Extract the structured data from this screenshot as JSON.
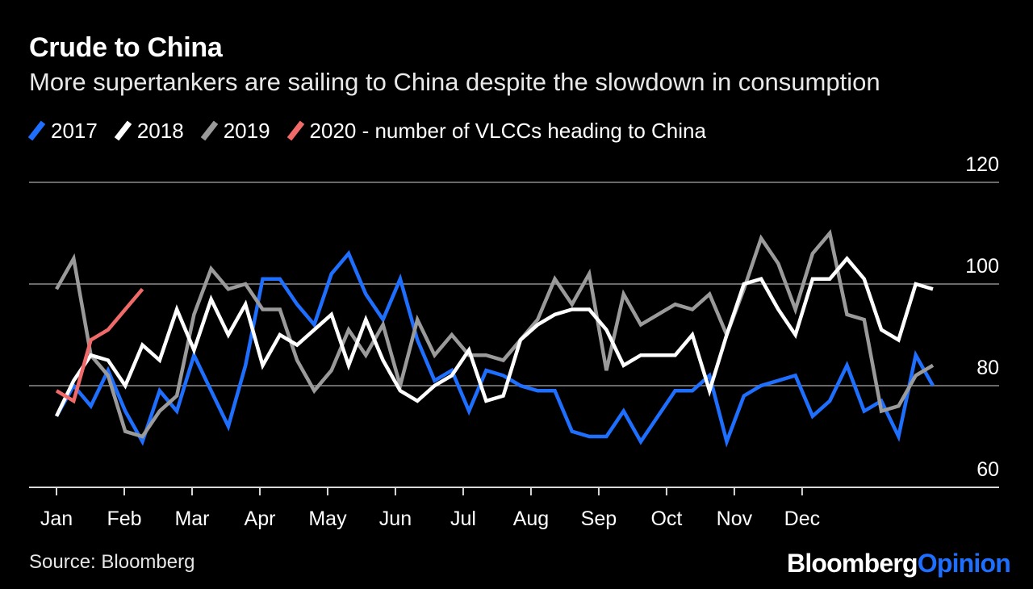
{
  "header": {
    "title": "Crude to China",
    "subtitle": "More supertankers are sailing to China despite the slowdown in consumption"
  },
  "legend": [
    {
      "label": "2017",
      "color": "#1f6fff"
    },
    {
      "label": "2018",
      "color": "#ffffff"
    },
    {
      "label": "2019",
      "color": "#9a9a9a"
    },
    {
      "label": "2020 - number of VLCCs heading to China",
      "color": "#f06a6a"
    }
  ],
  "footer": {
    "source": "Source: Bloomberg",
    "brand_part1": "Bloomberg",
    "brand_part2": "Opinion"
  },
  "chart_data": {
    "type": "line",
    "title": "Crude to China",
    "subtitle": "More supertankers are sailing to China despite the slowdown in consumption",
    "xlabel": "",
    "ylabel": "",
    "ylim": [
      60,
      120
    ],
    "yticks": [
      60,
      80,
      100,
      120
    ],
    "month_labels": [
      "Jan",
      "Feb",
      "Mar",
      "Apr",
      "May",
      "Jun",
      "Jul",
      "Aug",
      "Sep",
      "Oct",
      "Nov",
      "Dec"
    ],
    "x_unit": "week of year",
    "grid": true,
    "axis_position": "right",
    "legend_position": "top-left",
    "series": [
      {
        "name": "2017",
        "color": "#1f6fff",
        "x": [
          1,
          2,
          3,
          4,
          5,
          6,
          7,
          8,
          9,
          10,
          11,
          12,
          13,
          14,
          15,
          16,
          17,
          18,
          19,
          20,
          21,
          22,
          23,
          24,
          25,
          26,
          27,
          28,
          29,
          30,
          31,
          32,
          33,
          34,
          35,
          36,
          37,
          38,
          39,
          40,
          41,
          42,
          43,
          44,
          45,
          46,
          47,
          48,
          49,
          50,
          51,
          52
        ],
        "values": [
          74,
          80,
          76,
          83,
          75,
          69,
          79,
          75,
          86,
          79,
          72,
          84,
          101,
          101,
          96,
          92,
          102,
          106,
          98,
          93,
          101,
          89,
          81,
          83,
          75,
          83,
          82,
          80,
          79,
          79,
          71,
          70,
          70,
          75,
          69,
          74,
          79,
          79,
          82,
          69,
          78,
          80,
          81,
          82,
          74,
          77,
          84,
          75,
          77,
          70,
          86,
          80
        ]
      },
      {
        "name": "2018",
        "color": "#ffffff",
        "x": [
          1,
          2,
          3,
          4,
          5,
          6,
          7,
          8,
          9,
          10,
          11,
          12,
          13,
          14,
          15,
          16,
          17,
          18,
          19,
          20,
          21,
          22,
          23,
          24,
          25,
          26,
          27,
          28,
          29,
          30,
          31,
          32,
          33,
          34,
          35,
          36,
          37,
          38,
          39,
          40,
          41,
          42,
          43,
          44,
          45,
          46,
          47,
          48,
          49,
          50,
          51,
          52
        ],
        "values": [
          74,
          81,
          86,
          85,
          80,
          88,
          85,
          95,
          87,
          97,
          90,
          96,
          84,
          90,
          88,
          91,
          94,
          84,
          93,
          85,
          79,
          77,
          80,
          82,
          87,
          77,
          78,
          89,
          92,
          94,
          95,
          95,
          91,
          84,
          86,
          86,
          86,
          90,
          79,
          90,
          100,
          101,
          95,
          90,
          101,
          101,
          105,
          101,
          91,
          89,
          100,
          99
        ]
      },
      {
        "name": "2019",
        "color": "#9a9a9a",
        "x": [
          1,
          2,
          3,
          4,
          5,
          6,
          7,
          8,
          9,
          10,
          11,
          12,
          13,
          14,
          15,
          16,
          17,
          18,
          19,
          20,
          21,
          22,
          23,
          24,
          25,
          26,
          27,
          28,
          29,
          30,
          31,
          32,
          33,
          34,
          35,
          36,
          37,
          38,
          39,
          40,
          41,
          42,
          43,
          44,
          45,
          46,
          47,
          48,
          49,
          50,
          51,
          52
        ],
        "values": [
          99,
          105,
          86,
          82,
          71,
          70,
          75,
          78,
          94,
          103,
          99,
          100,
          95,
          95,
          85,
          79,
          83,
          91,
          86,
          92,
          80,
          93,
          86,
          90,
          86,
          86,
          85,
          89,
          93,
          101,
          96,
          102,
          83,
          98,
          92,
          94,
          96,
          95,
          98,
          90,
          99,
          109,
          104,
          95,
          106,
          110,
          94,
          93,
          75,
          76,
          82,
          84
        ]
      },
      {
        "name": "2020",
        "color": "#f06a6a",
        "x": [
          1,
          2,
          3,
          4,
          5,
          6
        ],
        "values": [
          79,
          77,
          89,
          91,
          95,
          99
        ]
      }
    ]
  }
}
